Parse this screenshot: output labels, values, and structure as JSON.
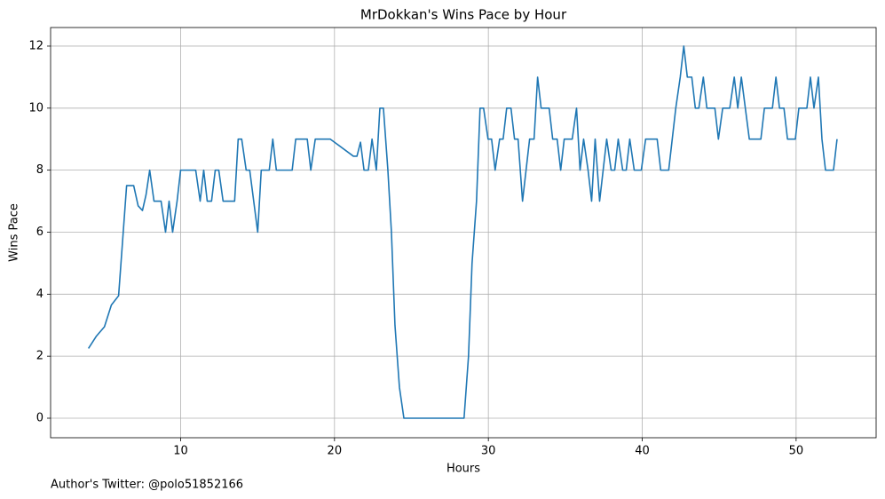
{
  "chart_data": {
    "type": "line",
    "title": "MrDokkan's Wins Pace by Hour",
    "xlabel": "Hours",
    "ylabel": "Wins Pace",
    "annotation": "Author's Twitter: @polo51852166",
    "color": "#1f77b4",
    "grid": true,
    "xlim": [
      1.55,
      55.2
    ],
    "ylim": [
      -0.63,
      12.6
    ],
    "xticks": [
      10,
      20,
      30,
      40,
      50
    ],
    "yticks": [
      0,
      2,
      4,
      6,
      8,
      10,
      12
    ],
    "x": [
      4.01,
      4.53,
      5.05,
      5.5,
      5.97,
      6.49,
      6.95,
      7.24,
      7.52,
      7.75,
      7.99,
      8.27,
      8.73,
      9.02,
      9.25,
      9.48,
      9.77,
      10,
      10.98,
      11.27,
      11.5,
      11.73,
      12.01,
      12.25,
      12.48,
      12.76,
      13.51,
      13.74,
      13.97,
      14.26,
      14.49,
      15.01,
      15.24,
      15.76,
      15.99,
      16.22,
      17.25,
      17.48,
      18.23,
      18.46,
      18.75,
      19.73,
      21.23,
      21.46,
      21.69,
      21.92,
      22.2,
      22.44,
      22.72,
      22.95,
      23.18,
      23.47,
      23.7,
      23.93,
      24.22,
      24.51,
      28.42,
      28.71,
      28.94,
      29.23,
      29.46,
      29.69,
      29.98,
      30.21,
      30.44,
      30.73,
      30.96,
      31.19,
      31.47,
      31.7,
      31.93,
      32.22,
      32.45,
      32.68,
      32.97,
      33.2,
      33.43,
      33.95,
      34.18,
      34.47,
      34.7,
      34.93,
      35.45,
      35.73,
      35.96,
      36.19,
      36.48,
      36.71,
      36.94,
      37.23,
      37.46,
      37.69,
      37.98,
      38.21,
      38.44,
      38.73,
      38.96,
      39.19,
      39.48,
      39.94,
      40.22,
      40.97,
      41.2,
      41.72,
      42.18,
      42.47,
      42.7,
      42.93,
      43.22,
      43.45,
      43.68,
      43.97,
      44.2,
      44.72,
      44.95,
      45.23,
      45.69,
      45.98,
      46.21,
      46.44,
      46.96,
      47.71,
      47.94,
      48.46,
      48.69,
      48.92,
      49.21,
      49.44,
      49.95,
      50.18,
      50.7,
      50.93,
      51.16,
      51.45,
      51.68,
      51.91,
      52.43,
      52.66
    ],
    "values": [
      2.25,
      2.65,
      2.95,
      3.65,
      3.95,
      7.5,
      7.5,
      6.85,
      6.7,
      7.2,
      8,
      7,
      7,
      6,
      7,
      6,
      7,
      8,
      8,
      7,
      8,
      7,
      7,
      8,
      8,
      7,
      7,
      9,
      9,
      8,
      8,
      6,
      8,
      8,
      9,
      8,
      8,
      9,
      9,
      8,
      9,
      9,
      8.45,
      8.45,
      8.9,
      8,
      8,
      9,
      8,
      10,
      10,
      8,
      6,
      3,
      1,
      0,
      0,
      2,
      5,
      7,
      10,
      10,
      9,
      9,
      8,
      9,
      9,
      10,
      10,
      9,
      9,
      7,
      8,
      9,
      9,
      11,
      10,
      10,
      9,
      9,
      8,
      9,
      9,
      10,
      8,
      9,
      8,
      7,
      9,
      7,
      8,
      9,
      8,
      8,
      9,
      8,
      8,
      9,
      8,
      8,
      9,
      9,
      8,
      8,
      10,
      11,
      12,
      11,
      11,
      10,
      10,
      11,
      10,
      10,
      9,
      10,
      10,
      11,
      10,
      11,
      9,
      9,
      10,
      10,
      11,
      10,
      10,
      9,
      9,
      10,
      10,
      11,
      10,
      11,
      9,
      8,
      8,
      9
    ]
  }
}
